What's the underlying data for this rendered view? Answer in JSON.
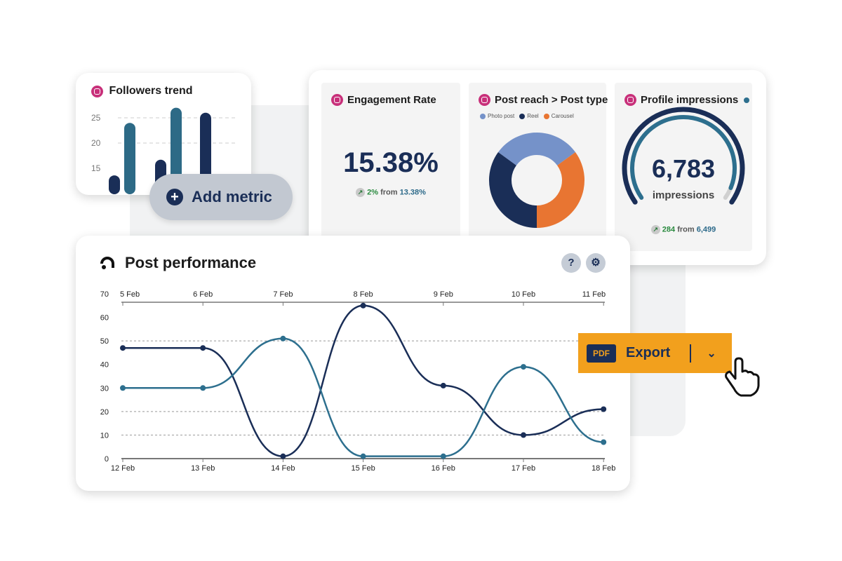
{
  "followers": {
    "title": "Followers trend",
    "y_ticks": [
      "25",
      "20",
      "15"
    ],
    "bars": [
      {
        "series": "dark",
        "value": 13.6
      },
      {
        "series": "teal",
        "value": 24
      },
      {
        "series": "dark",
        "value": 16.7
      },
      {
        "series": "teal",
        "value": 27
      },
      {
        "series": "dark",
        "value": 26
      }
    ]
  },
  "add_metric": {
    "label": "Add metric",
    "icon": "plus-circle-icon"
  },
  "engagement": {
    "title": "Engagement Rate",
    "value": "15.38%",
    "delta": "2%",
    "from_label": "from",
    "from_value": "13.38%"
  },
  "post_reach": {
    "title": "Post reach > Post type",
    "legend": [
      {
        "label": "Photo post",
        "color": "#7592c9"
      },
      {
        "label": "Reel",
        "color": "#1a2e57"
      },
      {
        "label": "Carousel",
        "color": "#e87532"
      }
    ],
    "shares": [
      30,
      35,
      35
    ]
  },
  "impressions": {
    "title": "Profile impressions",
    "value": "6,783",
    "unit": "impressions",
    "delta": "284",
    "from_label": "from",
    "from_value": "6,499",
    "gauge_fraction": 0.95
  },
  "post_performance": {
    "title": "Post performance",
    "help_icon": "help-icon",
    "settings_icon": "gear-icon"
  },
  "chart_data": {
    "type": "line",
    "y_ticks": [
      "0",
      "10",
      "20",
      "30",
      "40",
      "50",
      "60",
      "70"
    ],
    "ylim": [
      0,
      70
    ],
    "x_top": [
      "5 Feb",
      "6 Feb",
      "7 Feb",
      "8 Feb",
      "9 Feb",
      "10 Feb",
      "11 Feb"
    ],
    "x_bottom": [
      "12 Feb",
      "13 Feb",
      "14 Feb",
      "15 Feb",
      "16 Feb",
      "17 Feb",
      "18 Feb"
    ],
    "series": [
      {
        "color": "#1a2e57",
        "values": [
          47,
          47,
          1,
          65,
          31,
          10,
          21
        ]
      },
      {
        "color": "#2d6f8e",
        "values": [
          30,
          30,
          51,
          1,
          1,
          39,
          7
        ]
      }
    ],
    "grid": [
      10,
      20,
      50
    ]
  },
  "export": {
    "pdf_label": "PDF",
    "label": "Export",
    "color": "#f2a01d"
  }
}
